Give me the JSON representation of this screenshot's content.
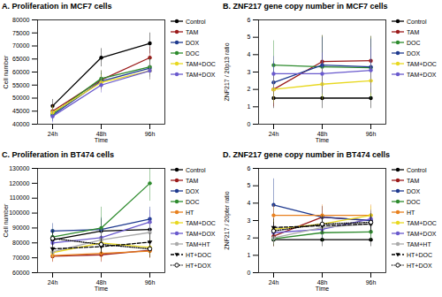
{
  "chart_data": [
    {
      "type": "line",
      "panel": "A.",
      "title": "Proliferation in MCF7 cells",
      "xlabel": "Time",
      "ylabel": "Cell number",
      "x": [
        "24h",
        "48h",
        "96h"
      ],
      "ylim": [
        40000,
        80000
      ],
      "yticks": [
        40000,
        45000,
        50000,
        55000,
        60000,
        65000,
        70000,
        75000,
        80000
      ],
      "grid": false,
      "series": [
        {
          "name": "Control",
          "color": "#000000",
          "marker": "circle",
          "line_style": "solid",
          "values": [
            47000,
            65500,
            71000
          ],
          "errors": [
            2500,
            3500,
            4000
          ]
        },
        {
          "name": "TAM",
          "color": "#9b1b1b",
          "marker": "circle",
          "line_style": "solid",
          "values": [
            45000,
            57000,
            65500
          ],
          "errors": [
            2500,
            3500,
            4000
          ]
        },
        {
          "name": "DOX",
          "color": "#1f3a8f",
          "marker": "circle",
          "line_style": "solid",
          "values": [
            43500,
            56500,
            61500
          ],
          "errors": [
            2500,
            3000,
            3500
          ]
        },
        {
          "name": "DOC",
          "color": "#2e8b2e",
          "marker": "circle",
          "line_style": "solid",
          "values": [
            44000,
            57500,
            62000
          ],
          "errors": [
            2500,
            3000,
            3500
          ]
        },
        {
          "name": "TAM+DOC",
          "color": "#e8d820",
          "marker": "circle",
          "line_style": "solid",
          "values": [
            44500,
            56000,
            60500
          ],
          "errors": [
            2500,
            3000,
            3500
          ]
        },
        {
          "name": "TAM+DOX",
          "color": "#6a5acd",
          "marker": "circle",
          "line_style": "solid",
          "values": [
            43000,
            55000,
            60500
          ],
          "errors": [
            2500,
            3000,
            3500
          ]
        }
      ]
    },
    {
      "type": "line",
      "panel": "B.",
      "title": "ZNF217 gene copy number in MCF7 cells",
      "xlabel": "Time",
      "ylabel": "ZNF217 / 20p13 ratio",
      "x": [
        "24h",
        "48h",
        "96h"
      ],
      "ylim": [
        0,
        6
      ],
      "yticks": [
        0,
        1,
        2,
        3,
        4,
        5,
        6
      ],
      "grid": false,
      "series": [
        {
          "name": "Control",
          "color": "#000000",
          "marker": "circle",
          "line_style": "solid",
          "values": [
            1.5,
            1.5,
            1.5
          ],
          "errors": [
            0.6,
            0.6,
            0.6
          ]
        },
        {
          "name": "TAM",
          "color": "#9b1b1b",
          "marker": "circle",
          "line_style": "solid",
          "values": [
            2.0,
            3.6,
            3.65
          ],
          "errors": [
            1.0,
            1.5,
            1.4
          ]
        },
        {
          "name": "DOC",
          "color": "#2e8b2e",
          "marker": "circle",
          "line_style": "solid",
          "values": [
            3.4,
            3.3,
            3.25
          ],
          "errors": [
            1.4,
            1.8,
            1.8
          ]
        },
        {
          "name": "DOX",
          "color": "#1f3a8f",
          "marker": "circle",
          "line_style": "solid",
          "values": [
            2.4,
            3.4,
            3.3
          ],
          "errors": [
            1.2,
            1.6,
            1.6
          ]
        },
        {
          "name": "TAM+DOC",
          "color": "#e8d820",
          "marker": "circle",
          "line_style": "solid",
          "values": [
            2.0,
            2.3,
            2.5
          ],
          "errors": [
            0.8,
            0.9,
            0.9
          ]
        },
        {
          "name": "TAM+DOX",
          "color": "#6a5acd",
          "marker": "circle",
          "line_style": "solid",
          "values": [
            2.9,
            2.9,
            3.1
          ],
          "errors": [
            1.0,
            1.2,
            1.3
          ]
        }
      ]
    },
    {
      "type": "line",
      "panel": "C.",
      "title": "Proliferation in BT474 cells",
      "xlabel": "Time",
      "ylabel": "Cell number",
      "x": [
        "24h",
        "48h",
        "96h"
      ],
      "ylim": [
        60000,
        130000
      ],
      "yticks": [
        60000,
        70000,
        80000,
        90000,
        100000,
        110000,
        120000,
        130000
      ],
      "grid": false,
      "series": [
        {
          "name": "Control",
          "color": "#000000",
          "marker": "circle",
          "line_style": "solid",
          "values": [
            82000,
            88000,
            89000
          ],
          "errors": [
            5000,
            8000,
            8000
          ]
        },
        {
          "name": "TAM",
          "color": "#9b1b1b",
          "marker": "circle",
          "line_style": "solid",
          "values": [
            71000,
            72000,
            75000
          ],
          "errors": [
            4000,
            5000,
            5000
          ]
        },
        {
          "name": "DOX",
          "color": "#1f3a8f",
          "marker": "circle",
          "line_style": "solid",
          "values": [
            88000,
            89000,
            96000
          ],
          "errors": [
            5000,
            8000,
            8000
          ]
        },
        {
          "name": "DOC",
          "color": "#2e8b2e",
          "marker": "circle",
          "line_style": "solid",
          "values": [
            84000,
            90000,
            120000
          ],
          "errors": [
            5000,
            14000,
            12000
          ]
        },
        {
          "name": "HT",
          "color": "#e8801e",
          "marker": "circle",
          "line_style": "solid",
          "values": [
            71500,
            73000,
            74500
          ],
          "errors": [
            4000,
            5000,
            5000
          ]
        },
        {
          "name": "TAM+DOC",
          "color": "#e8d820",
          "marker": "circle",
          "line_style": "solid",
          "values": [
            73500,
            80000,
            77000
          ],
          "errors": [
            4000,
            6000,
            6000
          ]
        },
        {
          "name": "TAM+DOX",
          "color": "#6a5acd",
          "marker": "circle",
          "line_style": "solid",
          "values": [
            80000,
            83500,
            94000
          ],
          "errors": [
            5000,
            6000,
            8000
          ]
        },
        {
          "name": "TAM+HT",
          "color": "#aaaaaa",
          "marker": "circle",
          "line_style": "solid",
          "values": [
            74000,
            82000,
            87000
          ],
          "errors": [
            4000,
            6000,
            7000
          ]
        },
        {
          "name": "HT+DOC",
          "color": "#000000",
          "marker": "triangle-down",
          "line_style": "dashed",
          "values": [
            76000,
            77500,
            80500
          ],
          "errors": [
            4000,
            5000,
            6000
          ]
        },
        {
          "name": "HT+DOX",
          "color": "#000000",
          "marker": "circle-open",
          "line_style": "dotted",
          "values": [
            83000,
            79000,
            76000
          ],
          "errors": [
            5000,
            6000,
            6000
          ]
        }
      ]
    },
    {
      "type": "line",
      "panel": "D.",
      "title": "ZNF217 gene copy number in BT474 cells",
      "xlabel": "Time",
      "ylabel": "ZNF217 / 20pter ratio",
      "x": [
        "24h",
        "48h",
        "96h"
      ],
      "ylim": [
        0,
        6
      ],
      "yticks": [
        0,
        1,
        2,
        3,
        4,
        5,
        6
      ],
      "grid": false,
      "series": [
        {
          "name": "Control",
          "color": "#000000",
          "marker": "circle",
          "line_style": "solid",
          "values": [
            1.9,
            1.9,
            1.9
          ],
          "errors": [
            0.4,
            0.4,
            0.4
          ]
        },
        {
          "name": "TAM",
          "color": "#9b1b1b",
          "marker": "circle",
          "line_style": "solid",
          "values": [
            2.1,
            3.2,
            3.0
          ],
          "errors": [
            0.6,
            0.6,
            0.5
          ]
        },
        {
          "name": "DOX",
          "color": "#1f3a8f",
          "marker": "circle",
          "line_style": "solid",
          "values": [
            3.9,
            3.2,
            3.0
          ],
          "errors": [
            1.5,
            0.6,
            0.5
          ]
        },
        {
          "name": "DOC",
          "color": "#2e8b2e",
          "marker": "circle",
          "line_style": "solid",
          "values": [
            1.95,
            2.3,
            2.35
          ],
          "errors": [
            0.4,
            0.5,
            0.5
          ]
        },
        {
          "name": "HT",
          "color": "#e8801e",
          "marker": "circle",
          "line_style": "solid",
          "values": [
            3.3,
            3.3,
            3.3
          ],
          "errors": [
            0.6,
            0.6,
            0.6
          ]
        },
        {
          "name": "TAM+DOC",
          "color": "#e8d820",
          "marker": "circle",
          "line_style": "solid",
          "values": [
            2.5,
            2.8,
            3.3
          ],
          "errors": [
            0.5,
            0.5,
            0.5
          ]
        },
        {
          "name": "TAM+DOX",
          "color": "#6a5acd",
          "marker": "circle",
          "line_style": "solid",
          "values": [
            2.3,
            2.5,
            3.1
          ],
          "errors": [
            0.5,
            0.5,
            0.5
          ]
        },
        {
          "name": "TAM+HT",
          "color": "#aaaaaa",
          "marker": "circle",
          "line_style": "solid",
          "values": [
            2.0,
            2.6,
            2.8
          ],
          "errors": [
            0.4,
            0.5,
            0.5
          ]
        },
        {
          "name": "HT+DOC",
          "color": "#000000",
          "marker": "triangle-down",
          "line_style": "dashed",
          "values": [
            2.6,
            2.7,
            2.8
          ],
          "errors": [
            0.5,
            0.5,
            0.5
          ]
        },
        {
          "name": "HT+DOX",
          "color": "#000000",
          "marker": "circle-open",
          "line_style": "dotted",
          "values": [
            2.4,
            2.8,
            2.9
          ],
          "errors": [
            0.5,
            0.5,
            0.5
          ]
        }
      ]
    }
  ]
}
